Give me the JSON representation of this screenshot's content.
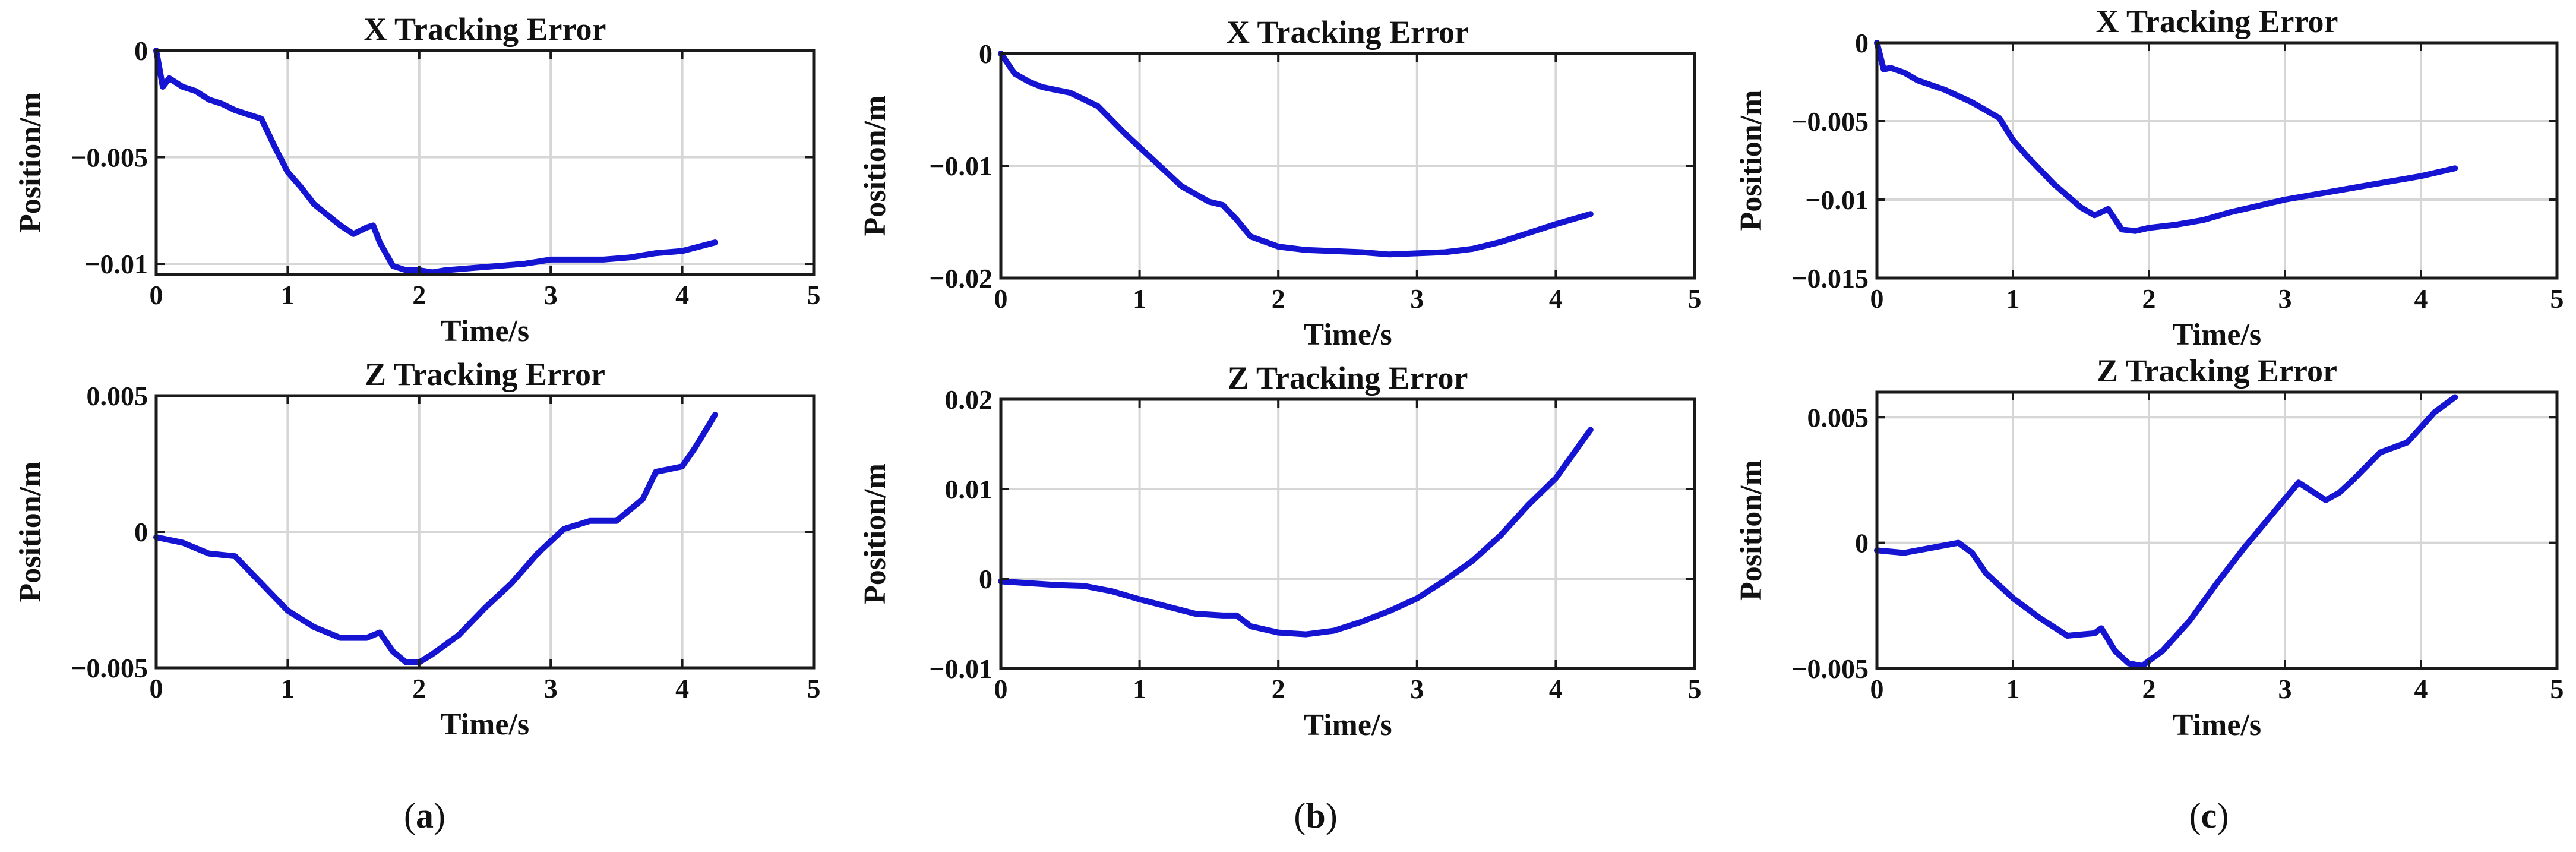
{
  "chart_data": [
    {
      "id": "a-x",
      "type": "line",
      "title": "X Tracking Error",
      "xlabel": "Time/s",
      "ylabel": "Position/m",
      "xlim": [
        0,
        5
      ],
      "ylim": [
        -0.0105,
        0
      ],
      "xticks": [
        0,
        1,
        2,
        3,
        4,
        5
      ],
      "yticks": [
        0,
        -0.005,
        -0.01
      ],
      "xtick_labels": [
        "0",
        "1",
        "2",
        "3",
        "4",
        "5"
      ],
      "ytick_labels": [
        "0",
        "-0.005",
        "-0.01"
      ],
      "grid": true,
      "series": [
        {
          "color": "#1414d2",
          "x": [
            0,
            0.05,
            0.1,
            0.2,
            0.3,
            0.4,
            0.5,
            0.6,
            0.7,
            0.8,
            0.9,
            1.0,
            1.1,
            1.2,
            1.3,
            1.4,
            1.5,
            1.6,
            1.65,
            1.7,
            1.8,
            1.9,
            2.0,
            2.1,
            2.2,
            2.4,
            2.6,
            2.8,
            3.0,
            3.2,
            3.4,
            3.6,
            3.8,
            4.0,
            4.25
          ],
          "y": [
            0,
            -0.0017,
            -0.0013,
            -0.0017,
            -0.0019,
            -0.0023,
            -0.0025,
            -0.0028,
            -0.003,
            -0.0032,
            -0.0045,
            -0.0057,
            -0.0064,
            -0.0072,
            -0.0077,
            -0.0082,
            -0.0086,
            -0.0083,
            -0.0082,
            -0.009,
            -0.0101,
            -0.0103,
            -0.0103,
            -0.0104,
            -0.0103,
            -0.0102,
            -0.0101,
            -0.01,
            -0.0098,
            -0.0098,
            -0.0098,
            -0.0097,
            -0.0095,
            -0.0094,
            -0.009
          ]
        }
      ]
    },
    {
      "id": "a-z",
      "type": "line",
      "title": "Z Tracking Error",
      "xlabel": "Time/s",
      "ylabel": "Position/m",
      "xlim": [
        0,
        5
      ],
      "ylim": [
        -0.005,
        0.005
      ],
      "xticks": [
        0,
        1,
        2,
        3,
        4,
        5
      ],
      "yticks": [
        0.005,
        0,
        -0.005
      ],
      "xtick_labels": [
        "0",
        "1",
        "2",
        "3",
        "4",
        "5"
      ],
      "ytick_labels": [
        "0.005",
        "0",
        "-0.005"
      ],
      "grid": true,
      "series": [
        {
          "color": "#1414d2",
          "x": [
            0,
            0.2,
            0.4,
            0.6,
            0.8,
            1.0,
            1.2,
            1.4,
            1.6,
            1.7,
            1.8,
            1.9,
            2.0,
            2.1,
            2.3,
            2.5,
            2.7,
            2.9,
            3.1,
            3.3,
            3.5,
            3.6,
            3.7,
            3.8,
            4.0,
            4.1,
            4.25
          ],
          "y": [
            -0.0002,
            -0.0004,
            -0.0008,
            -0.0009,
            -0.0019,
            -0.0029,
            -0.0035,
            -0.0039,
            -0.0039,
            -0.0037,
            -0.0044,
            -0.0048,
            -0.0048,
            -0.0045,
            -0.0038,
            -0.0028,
            -0.0019,
            -0.0008,
            0.0001,
            0.0004,
            0.0004,
            0.0008,
            0.0012,
            0.0022,
            0.0024,
            0.0031,
            0.0043
          ]
        }
      ]
    },
    {
      "id": "b-x",
      "type": "line",
      "title": "X Tracking Error",
      "xlabel": "Time/s",
      "ylabel": "Position/m",
      "xlim": [
        0,
        5
      ],
      "ylim": [
        -0.02,
        0
      ],
      "xticks": [
        0,
        1,
        2,
        3,
        4,
        5
      ],
      "yticks": [
        0,
        -0.01,
        -0.02
      ],
      "xtick_labels": [
        "0",
        "1",
        "2",
        "3",
        "4",
        "5"
      ],
      "ytick_labels": [
        "0",
        "-0.01",
        "-0.02"
      ],
      "grid": true,
      "series": [
        {
          "color": "#1414d2",
          "x": [
            0,
            0.1,
            0.2,
            0.3,
            0.5,
            0.7,
            0.9,
            1.1,
            1.3,
            1.5,
            1.6,
            1.7,
            1.8,
            2.0,
            2.2,
            2.4,
            2.6,
            2.8,
            3.0,
            3.2,
            3.4,
            3.6,
            3.8,
            4.0,
            4.25
          ],
          "y": [
            0,
            -0.0018,
            -0.0025,
            -0.003,
            -0.0035,
            -0.0047,
            -0.0072,
            -0.0095,
            -0.0118,
            -0.0132,
            -0.0135,
            -0.0148,
            -0.0163,
            -0.0172,
            -0.0175,
            -0.0176,
            -0.0177,
            -0.0179,
            -0.0178,
            -0.0177,
            -0.0174,
            -0.0168,
            -0.016,
            -0.0152,
            -0.0143
          ]
        }
      ]
    },
    {
      "id": "b-z",
      "type": "line",
      "title": "Z Tracking Error",
      "xlabel": "Time/s",
      "ylabel": "Position/m",
      "xlim": [
        0,
        5
      ],
      "ylim": [
        -0.01,
        0.02
      ],
      "xticks": [
        0,
        1,
        2,
        3,
        4,
        5
      ],
      "yticks": [
        0.02,
        0.01,
        0,
        -0.01
      ],
      "xtick_labels": [
        "0",
        "1",
        "2",
        "3",
        "4",
        "5"
      ],
      "ytick_labels": [
        "0.02",
        "0.01",
        "0",
        "-0.01"
      ],
      "grid": true,
      "series": [
        {
          "color": "#1414d2",
          "x": [
            0,
            0.2,
            0.4,
            0.6,
            0.8,
            1.0,
            1.2,
            1.4,
            1.6,
            1.7,
            1.8,
            2.0,
            2.2,
            2.4,
            2.6,
            2.8,
            3.0,
            3.2,
            3.4,
            3.6,
            3.8,
            4.0,
            4.25
          ],
          "y": [
            -0.0003,
            -0.0005,
            -0.0007,
            -0.0008,
            -0.0014,
            -0.0023,
            -0.0031,
            -0.0039,
            -0.0041,
            -0.0041,
            -0.0053,
            -0.006,
            -0.0062,
            -0.0058,
            -0.0048,
            -0.0036,
            -0.0022,
            -0.0002,
            0.002,
            0.0048,
            0.0082,
            0.0112,
            0.0166
          ]
        }
      ]
    },
    {
      "id": "c-x",
      "type": "line",
      "title": "X Tracking Error",
      "xlabel": "Time/s",
      "ylabel": "Position/m",
      "xlim": [
        0,
        5
      ],
      "ylim": [
        -0.015,
        0
      ],
      "xticks": [
        0,
        1,
        2,
        3,
        4,
        5
      ],
      "yticks": [
        0,
        -0.005,
        -0.01,
        -0.015
      ],
      "xtick_labels": [
        "0",
        "1",
        "2",
        "3",
        "4",
        "5"
      ],
      "ytick_labels": [
        "0",
        "-0.005",
        "-0.01",
        "-0.015"
      ],
      "grid": true,
      "series": [
        {
          "color": "#1414d2",
          "x": [
            0,
            0.05,
            0.1,
            0.2,
            0.3,
            0.5,
            0.7,
            0.9,
            1.0,
            1.1,
            1.3,
            1.5,
            1.6,
            1.7,
            1.8,
            1.9,
            2.0,
            2.2,
            2.4,
            2.6,
            2.8,
            3.0,
            3.2,
            3.4,
            3.6,
            3.8,
            4.0,
            4.25
          ],
          "y": [
            0,
            -0.0017,
            -0.0016,
            -0.0019,
            -0.0024,
            -0.003,
            -0.0038,
            -0.0048,
            -0.0062,
            -0.0072,
            -0.009,
            -0.0105,
            -0.011,
            -0.0106,
            -0.0119,
            -0.012,
            -0.0118,
            -0.0116,
            -0.0113,
            -0.0108,
            -0.0104,
            -0.01,
            -0.0097,
            -0.0094,
            -0.0091,
            -0.0088,
            -0.0085,
            -0.008
          ]
        }
      ]
    },
    {
      "id": "c-z",
      "type": "line",
      "title": "Z Tracking Error",
      "xlabel": "Time/s",
      "ylabel": "Position/m",
      "xlim": [
        0,
        5
      ],
      "ylim": [
        -0.005,
        0.006
      ],
      "xticks": [
        0,
        1,
        2,
        3,
        4,
        5
      ],
      "yticks": [
        0.005,
        0,
        -0.005
      ],
      "xtick_labels": [
        "0",
        "1",
        "2",
        "3",
        "4",
        "5"
      ],
      "ytick_labels": [
        "0.005",
        "0",
        "-0.005"
      ],
      "grid": true,
      "series": [
        {
          "color": "#1414d2",
          "x": [
            0,
            0.2,
            0.4,
            0.6,
            0.7,
            0.8,
            1.0,
            1.2,
            1.4,
            1.6,
            1.65,
            1.75,
            1.85,
            1.95,
            2.1,
            2.3,
            2.5,
            2.7,
            2.9,
            3.1,
            3.3,
            3.4,
            3.5,
            3.7,
            3.9,
            4.1,
            4.25
          ],
          "y": [
            -0.0003,
            -0.0004,
            -0.0002,
            0,
            -0.0004,
            -0.0012,
            -0.0022,
            -0.003,
            -0.0037,
            -0.0036,
            -0.0034,
            -0.0043,
            -0.0048,
            -0.0049,
            -0.0043,
            -0.0031,
            -0.0016,
            -0.0002,
            0.0011,
            0.0024,
            0.0017,
            0.002,
            0.0025,
            0.0036,
            0.004,
            0.0052,
            0.0058
          ]
        }
      ]
    }
  ],
  "captions": [
    "(a)",
    "(b)",
    "(c)"
  ],
  "caption_letters": [
    "a",
    "b",
    "c"
  ]
}
